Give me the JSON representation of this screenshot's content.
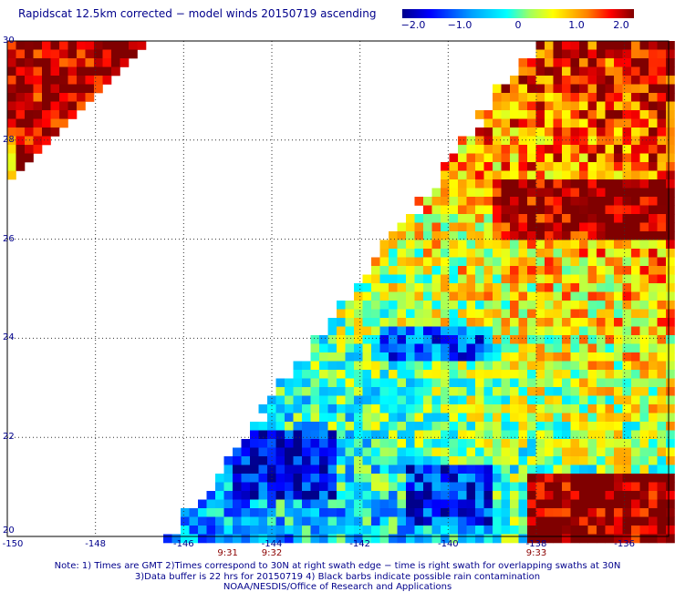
{
  "title": "Rapidscat 12.5km corrected − model winds 20150719 ascending",
  "colorbar": {
    "min": -2.0,
    "max": 2.0,
    "colormap": "rainbow (dark blue to dark red)",
    "tick_labels": [
      "−2.0",
      "−1.0",
      "0",
      "1.0",
      "2.0"
    ]
  },
  "map": {
    "lon_range": [
      -150,
      -135
    ],
    "lat_range": [
      20,
      30
    ],
    "lon_tick_labels": [
      "-150",
      "-148",
      "-146",
      "-144",
      "-142",
      "-140",
      "-138",
      "-136"
    ],
    "lat_tick_labels": [
      "30",
      "28",
      "26",
      "24",
      "22",
      "20"
    ],
    "grid": "dotted",
    "pass_times": [
      {
        "label": "9:31",
        "lon": -145
      },
      {
        "label": "9:32",
        "lon": -144
      },
      {
        "label": "9:33",
        "lon": -138
      }
    ]
  },
  "notes": {
    "line1": "Note: 1) Times are GMT 2)Times correspond to 30N at right swath edge − time is right swath for overlapping swaths at 30N",
    "line2": "3)Data buffer is 22 hrs for 20150719 4) Black barbs indicate possible rain contamination",
    "line3": "NOAA/NESDIS/Office of Research and Applications"
  }
}
